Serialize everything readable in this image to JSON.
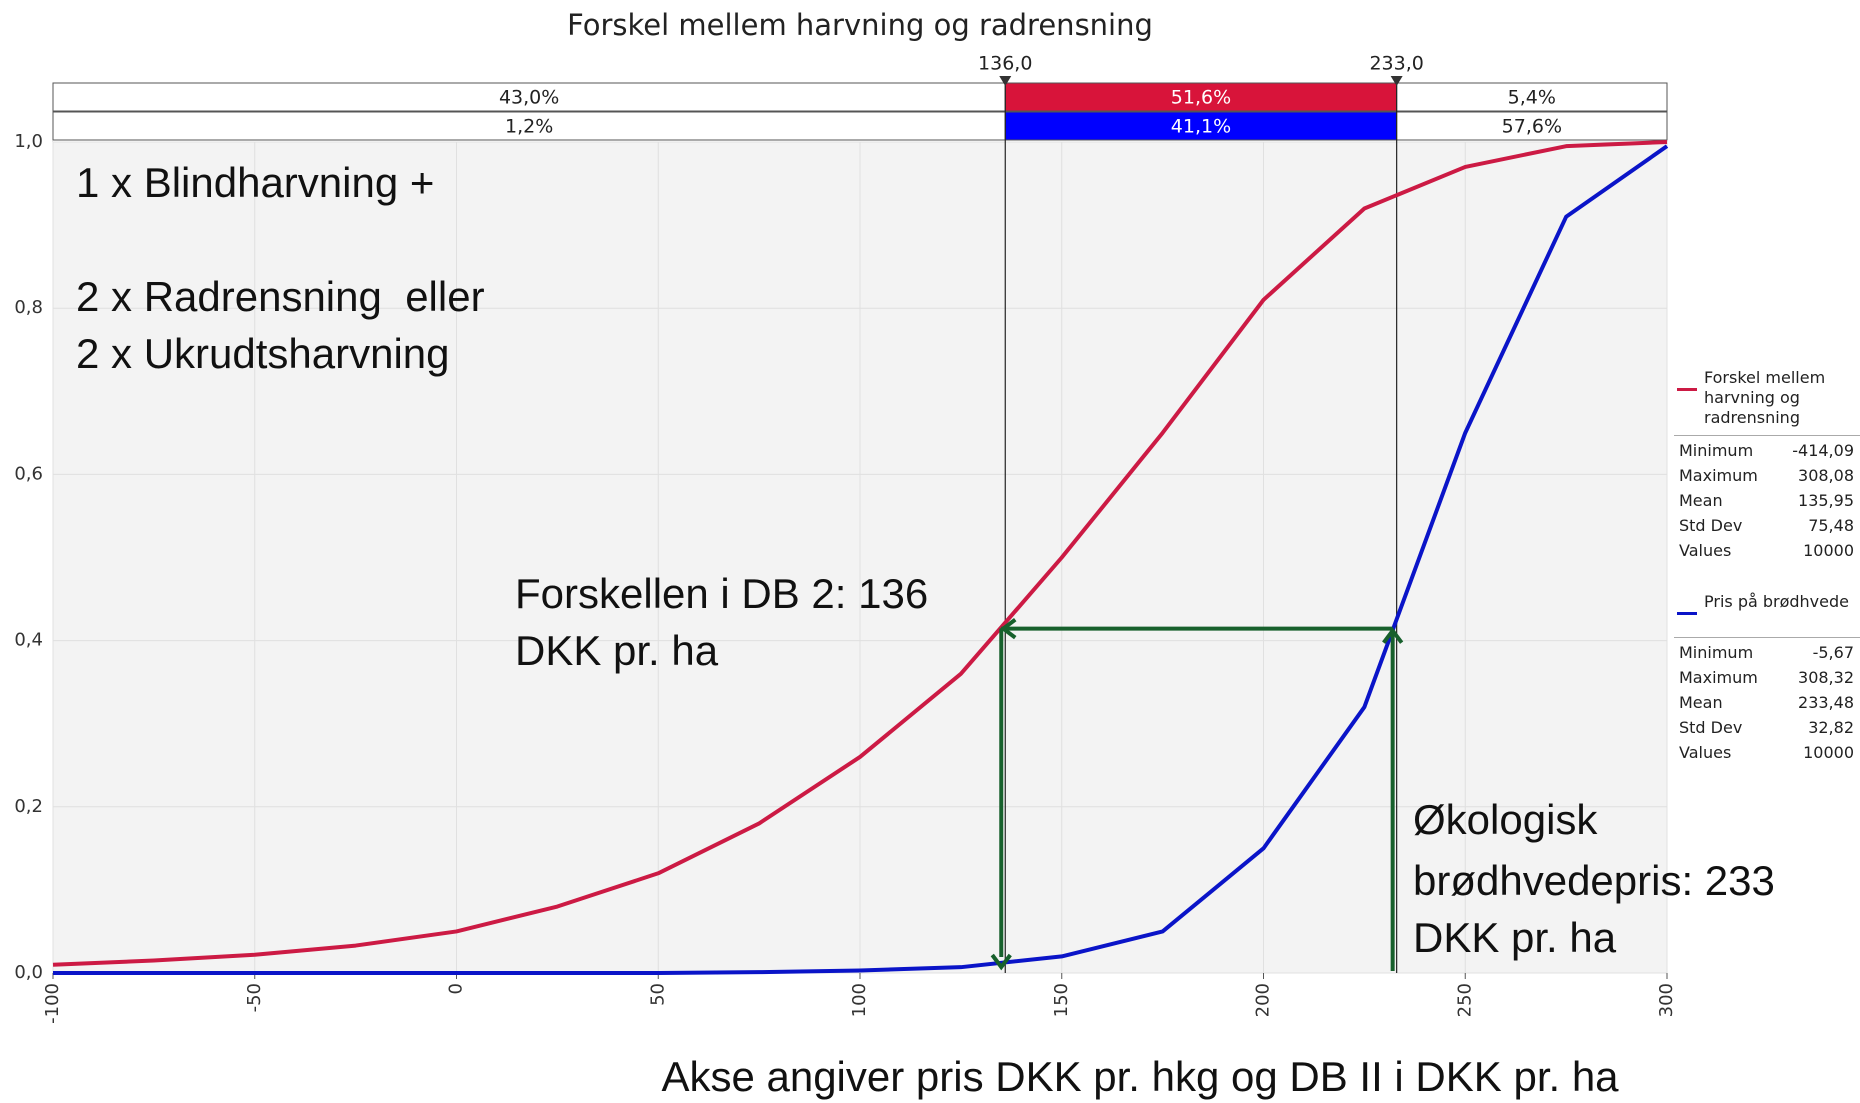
{
  "chart_data": {
    "type": "line",
    "title": "Forskel mellem harvning og radrensning",
    "xlabel": "Akse angiver pris DKK pr. hkg og DB II i DKK pr. ha",
    "x": [
      -100,
      -75,
      -50,
      -25,
      0,
      25,
      50,
      75,
      100,
      125,
      150,
      175,
      200,
      225,
      250,
      275,
      300
    ],
    "series": [
      {
        "name": "Forskel mellem harvning og radrensning",
        "color": "#cc1a44",
        "values": [
          0.01,
          0.015,
          0.022,
          0.033,
          0.05,
          0.08,
          0.12,
          0.18,
          0.26,
          0.36,
          0.5,
          0.65,
          0.81,
          0.92,
          0.97,
          0.995,
          1.0
        ],
        "band_labels": [
          "43,0%",
          "51,6%",
          "5,4%"
        ],
        "band_color": "#d8143a",
        "stats": [
          [
            "Minimum",
            "-414,09"
          ],
          [
            "Maximum",
            "308,08"
          ],
          [
            "Mean",
            "135,95"
          ],
          [
            "Std Dev",
            "75,48"
          ],
          [
            "Values",
            "10000"
          ]
        ]
      },
      {
        "name": "Pris på brødhvede",
        "color": "#0a14c8",
        "values": [
          0,
          0,
          0,
          0,
          0,
          0,
          0,
          0.001,
          0.003,
          0.007,
          0.02,
          0.05,
          0.15,
          0.32,
          0.65,
          0.91,
          0.995
        ],
        "band_labels": [
          "1,2%",
          "41,1%",
          "57,6%"
        ],
        "band_color": "#0000ff",
        "stats": [
          [
            "Minimum",
            "-5,67"
          ],
          [
            "Maximum",
            "308,32"
          ],
          [
            "Mean",
            "233,48"
          ],
          [
            "Std Dev",
            "32,82"
          ],
          [
            "Values",
            "10000"
          ]
        ]
      }
    ],
    "delimiters": [
      {
        "value": 136,
        "label": "136,0"
      },
      {
        "value": 233,
        "label": "233,0"
      }
    ],
    "xlim": [
      -100,
      300
    ],
    "ylim": [
      0,
      1
    ],
    "xticks": [
      -100,
      -50,
      0,
      50,
      100,
      150,
      200,
      250,
      300
    ],
    "yticks": [
      {
        "value": 0,
        "label": "0,0"
      },
      {
        "value": 0.2,
        "label": "0,2"
      },
      {
        "value": 0.4,
        "label": "0,4"
      },
      {
        "value": 0.6,
        "label": "0,6"
      },
      {
        "value": 0.8,
        "label": "0,8"
      },
      {
        "value": 1,
        "label": "1,0"
      }
    ],
    "grid": true,
    "annotations": [
      {
        "lines": [
          "1 x Blindharvning +",
          "2 x Radrensning  eller",
          "2 x Ukrudtsharvning"
        ]
      },
      {
        "lines": [
          "Forskellen i DB 2: 136",
          "DKK pr. ha"
        ]
      },
      {
        "lines": [
          "Økologisk",
          "brødhvedepris: 233",
          "DKK pr. ha"
        ]
      }
    ]
  }
}
